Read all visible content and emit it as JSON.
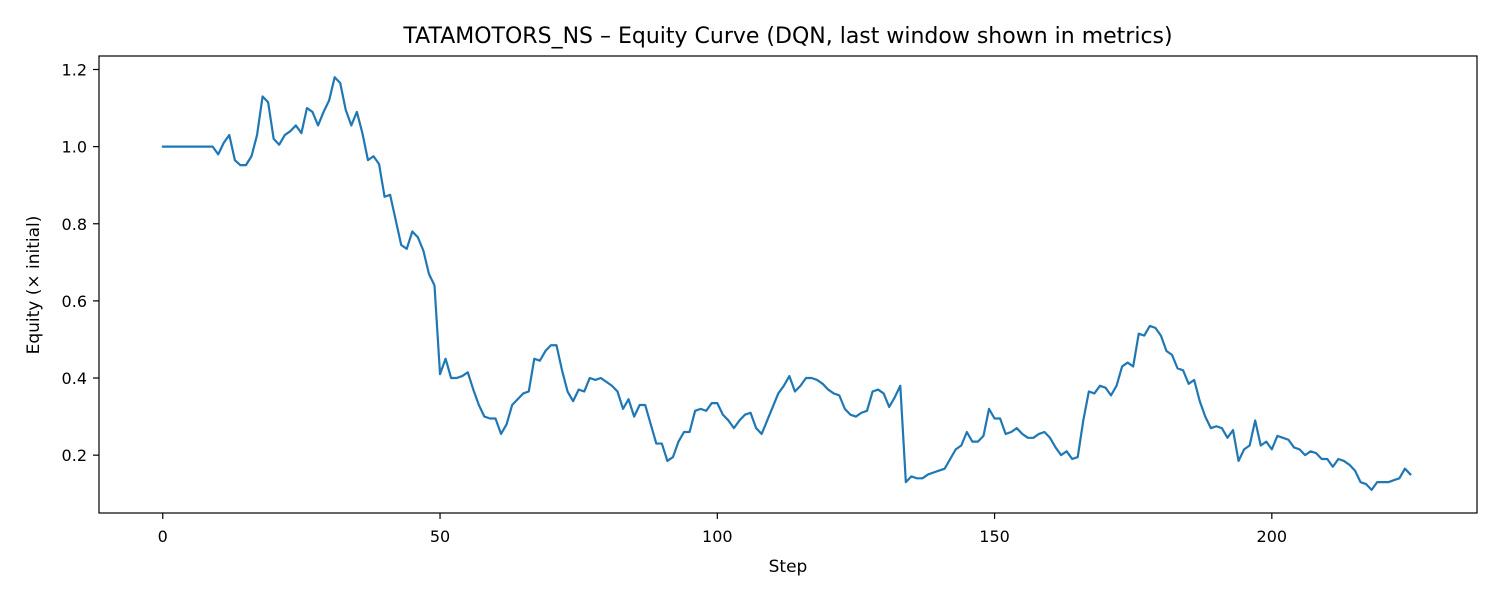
{
  "chart_data": {
    "type": "line",
    "title": "TATAMOTORS_NS – Equity Curve (DQN, last window shown in metrics)",
    "xlabel": "Step",
    "ylabel": "Equity (× initial)",
    "xlim": [
      -11.5,
      237
    ],
    "ylim": [
      0.05,
      1.235
    ],
    "xticks": [
      0,
      50,
      100,
      150,
      200
    ],
    "yticks": [
      0.2,
      0.4,
      0.6,
      0.8,
      1.0,
      1.2
    ],
    "xtick_labels": [
      "0",
      "50",
      "100",
      "150",
      "200"
    ],
    "ytick_labels": [
      "0.2",
      "0.4",
      "0.6",
      "0.8",
      "1.0",
      "1.2"
    ],
    "grid": false,
    "legend": "none",
    "colors": {
      "series": "#1f77b4"
    },
    "series": [
      {
        "x": [
          0,
          1,
          2,
          3,
          4,
          5,
          6,
          7,
          8,
          9,
          10,
          11,
          12,
          13,
          14,
          15,
          16,
          17,
          18,
          19,
          20,
          21,
          22,
          23,
          24,
          25,
          26,
          27,
          28,
          29,
          30,
          31,
          32,
          33,
          34,
          35,
          36,
          37,
          38,
          39,
          40,
          41,
          42,
          43,
          44,
          45,
          46,
          47,
          48,
          49,
          50,
          51,
          52,
          53,
          54,
          55,
          56,
          57,
          58,
          59,
          60,
          61,
          62,
          63,
          64,
          65,
          66,
          67,
          68,
          69,
          70,
          71,
          72,
          73,
          74,
          75,
          76,
          77,
          78,
          79,
          80,
          81,
          82,
          83,
          84,
          85,
          86,
          87,
          88,
          89,
          90,
          91,
          92,
          93,
          94,
          95,
          96,
          97,
          98,
          99,
          100,
          101,
          102,
          103,
          104,
          105,
          106,
          107,
          108,
          109,
          110,
          111,
          112,
          113,
          114,
          115,
          116,
          117,
          118,
          119,
          120,
          121,
          122,
          123,
          124,
          125,
          126,
          127,
          128,
          129,
          130,
          131,
          132,
          133,
          134,
          135,
          136,
          137,
          138,
          139,
          140,
          141,
          142,
          143,
          144,
          145,
          146,
          147,
          148,
          149,
          150,
          151,
          152,
          153,
          154,
          155,
          156,
          157,
          158,
          159,
          160,
          161,
          162,
          163,
          164,
          165,
          166,
          167,
          168,
          169,
          170,
          171,
          172,
          173,
          174,
          175,
          176,
          177,
          178,
          179,
          180,
          181,
          182,
          183,
          184,
          185,
          186,
          187,
          188,
          189,
          190,
          191,
          192,
          193,
          194,
          195,
          196,
          197,
          198,
          199,
          200,
          201,
          202,
          203,
          204,
          205,
          206,
          207,
          208,
          209,
          210,
          211,
          212,
          213,
          214,
          215,
          216,
          217,
          218,
          219,
          220,
          221,
          222,
          223,
          224,
          225
        ],
        "values": [
          1.0,
          1.0,
          1.0,
          1.0,
          1.0,
          1.0,
          1.0,
          1.0,
          1.0,
          1.0,
          0.98,
          1.01,
          1.03,
          0.965,
          0.952,
          0.952,
          0.975,
          1.03,
          1.13,
          1.115,
          1.02,
          1.005,
          1.03,
          1.04,
          1.055,
          1.035,
          1.1,
          1.09,
          1.055,
          1.09,
          1.12,
          1.18,
          1.165,
          1.095,
          1.055,
          1.09,
          1.035,
          0.965,
          0.975,
          0.955,
          0.87,
          0.875,
          0.81,
          0.745,
          0.735,
          0.78,
          0.765,
          0.73,
          0.67,
          0.64,
          0.41,
          0.45,
          0.4,
          0.4,
          0.405,
          0.415,
          0.37,
          0.33,
          0.3,
          0.295,
          0.295,
          0.255,
          0.28,
          0.33,
          0.345,
          0.36,
          0.365,
          0.45,
          0.445,
          0.47,
          0.485,
          0.485,
          0.42,
          0.365,
          0.34,
          0.37,
          0.365,
          0.4,
          0.395,
          0.4,
          0.39,
          0.38,
          0.365,
          0.32,
          0.345,
          0.3,
          0.33,
          0.33,
          0.28,
          0.23,
          0.23,
          0.185,
          0.195,
          0.235,
          0.26,
          0.26,
          0.315,
          0.32,
          0.315,
          0.335,
          0.335,
          0.305,
          0.29,
          0.27,
          0.29,
          0.305,
          0.31,
          0.27,
          0.255,
          0.29,
          0.325,
          0.36,
          0.38,
          0.405,
          0.365,
          0.38,
          0.4,
          0.4,
          0.395,
          0.385,
          0.37,
          0.36,
          0.355,
          0.32,
          0.305,
          0.3,
          0.31,
          0.315,
          0.365,
          0.37,
          0.36,
          0.325,
          0.35,
          0.38,
          0.13,
          0.145,
          0.14,
          0.14,
          0.15,
          0.155,
          0.16,
          0.165,
          0.19,
          0.215,
          0.225,
          0.26,
          0.235,
          0.235,
          0.25,
          0.32,
          0.295,
          0.295,
          0.255,
          0.26,
          0.27,
          0.255,
          0.245,
          0.245,
          0.255,
          0.26,
          0.245,
          0.22,
          0.2,
          0.21,
          0.19,
          0.195,
          0.29,
          0.365,
          0.36,
          0.38,
          0.375,
          0.355,
          0.38,
          0.43,
          0.44,
          0.43,
          0.515,
          0.51,
          0.535,
          0.53,
          0.51,
          0.47,
          0.46,
          0.425,
          0.42,
          0.385,
          0.395,
          0.34,
          0.3,
          0.27,
          0.275,
          0.27,
          0.245,
          0.265,
          0.185,
          0.215,
          0.225,
          0.29,
          0.225,
          0.235,
          0.215,
          0.25,
          0.245,
          0.24,
          0.22,
          0.215,
          0.2,
          0.21,
          0.205,
          0.19,
          0.19,
          0.17,
          0.19,
          0.185,
          0.175,
          0.16,
          0.13,
          0.125,
          0.11,
          0.13,
          0.13,
          0.13,
          0.135,
          0.14,
          0.165,
          0.15
        ]
      }
    ]
  }
}
